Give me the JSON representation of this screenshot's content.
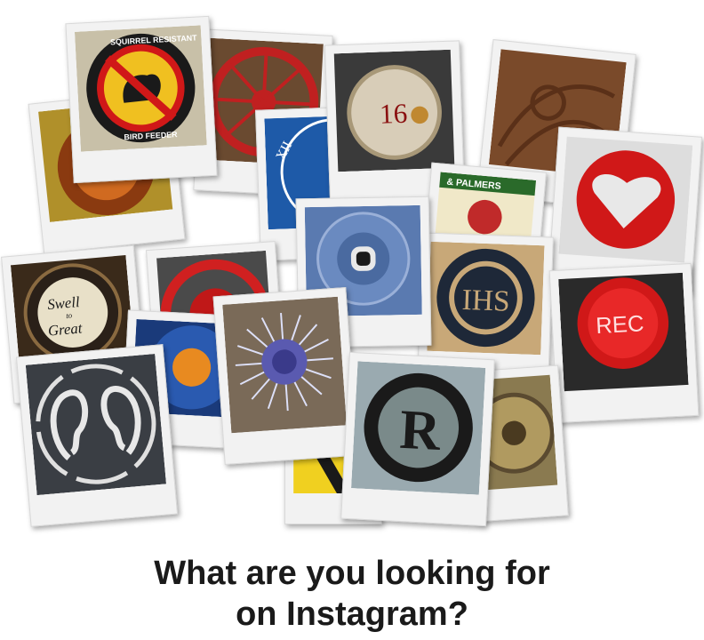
{
  "caption": {
    "line1": "What are you looking for",
    "line2": "on Instagram?"
  },
  "photos": [
    {
      "subject": "squirrel resistant bird feeder sign",
      "text_top": "SQUIRREL RESISTANT",
      "text_bottom": "BIRD FEEDER"
    },
    {
      "subject": "red cart wheel"
    },
    {
      "subject": "number plaque",
      "text": "16"
    },
    {
      "subject": "carved wood pattern"
    },
    {
      "subject": "blue clock face",
      "text": "XII"
    },
    {
      "subject": "red heart tin"
    },
    {
      "subject": "tin label",
      "text": "& PALMERS"
    },
    {
      "subject": "bottle cap",
      "text": "Swell to Great"
    },
    {
      "subject": "round metal cover",
      "text": "IHS"
    },
    {
      "subject": "red button",
      "text": "REC"
    },
    {
      "subject": "blue round lid"
    },
    {
      "subject": "globe thistle flower"
    },
    {
      "subject": "ears stencil"
    },
    {
      "subject": "letter R badge",
      "text": "R"
    }
  ]
}
